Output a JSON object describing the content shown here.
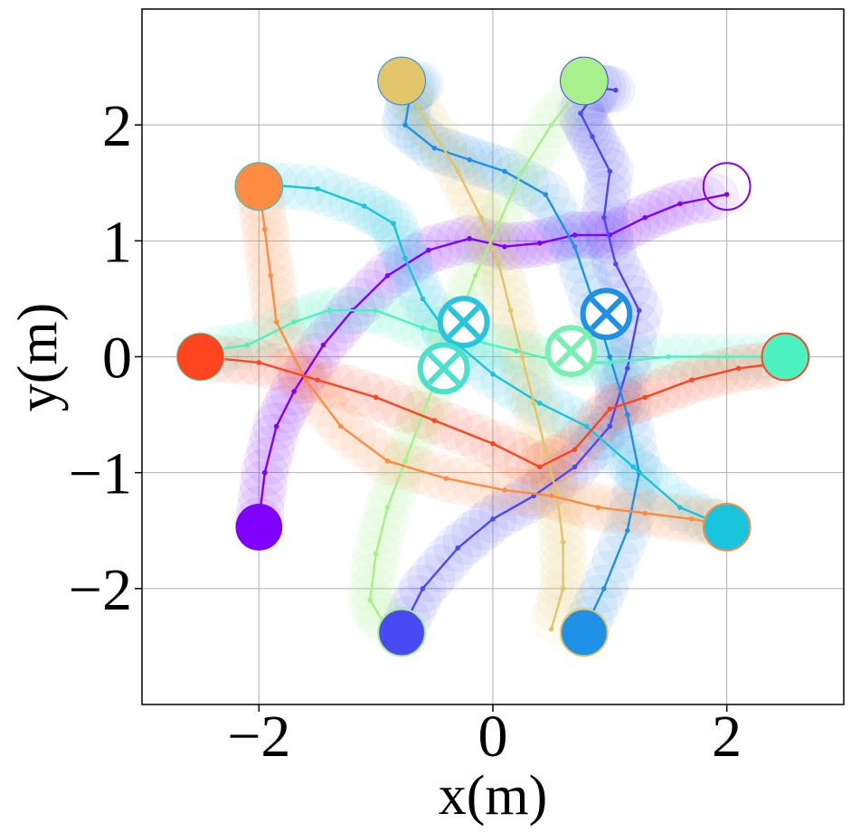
{
  "chart_data": {
    "type": "scatter",
    "title": "",
    "xlabel": "x(m)",
    "ylabel": "y(m)",
    "xlim": [
      -3,
      3
    ],
    "ylim": [
      -3,
      3
    ],
    "grid": true,
    "xticks": [
      {
        "value": -2,
        "label": "−2"
      },
      {
        "value": 0,
        "label": "0"
      },
      {
        "value": 2,
        "label": "2"
      }
    ],
    "yticks": [
      {
        "value": 2,
        "label": "2"
      },
      {
        "value": 1,
        "label": "1"
      },
      {
        "value": 0,
        "label": "0"
      },
      {
        "value": -1,
        "label": "−1"
      },
      {
        "value": -2,
        "label": "−2"
      }
    ],
    "series": [
      {
        "color": "#7f00ff",
        "start": [
          -2.0,
          -1.47
        ],
        "goal": [
          2.0,
          1.47
        ],
        "path": [
          [
            -2.0,
            -1.42
          ],
          [
            -1.95,
            -1.0
          ],
          [
            -1.85,
            -0.6
          ],
          [
            -1.7,
            -0.3
          ],
          [
            -1.45,
            0.1
          ],
          [
            -1.2,
            0.4
          ],
          [
            -0.9,
            0.7
          ],
          [
            -0.55,
            0.92
          ],
          [
            -0.2,
            1.02
          ],
          [
            0.1,
            0.95
          ],
          [
            0.4,
            0.98
          ],
          [
            0.7,
            1.05
          ],
          [
            1.0,
            1.05
          ],
          [
            1.3,
            1.2
          ],
          [
            1.6,
            1.32
          ],
          [
            2.0,
            1.4
          ]
        ]
      },
      {
        "color": "#4a4af5",
        "start": [
          -0.78,
          -2.38
        ],
        "goal": [
          0.78,
          2.38
        ],
        "path": [
          [
            -0.78,
            -2.36
          ],
          [
            -0.6,
            -2.0
          ],
          [
            -0.3,
            -1.65
          ],
          [
            0.0,
            -1.4
          ],
          [
            0.35,
            -1.2
          ],
          [
            0.7,
            -0.95
          ],
          [
            1.0,
            -0.6
          ],
          [
            1.15,
            -0.1
          ],
          [
            1.25,
            0.4
          ],
          [
            1.05,
            0.8
          ],
          [
            0.95,
            1.2
          ],
          [
            1.0,
            1.6
          ],
          [
            0.85,
            1.9
          ],
          [
            0.75,
            2.1
          ],
          [
            0.9,
            2.32
          ],
          [
            1.05,
            2.3
          ]
        ]
      },
      {
        "color": "#1e90e6",
        "start": [
          0.78,
          -2.38
        ],
        "goal": [
          -0.78,
          2.38
        ],
        "path": [
          [
            0.78,
            -2.36
          ],
          [
            0.95,
            -2.0
          ],
          [
            1.15,
            -1.5
          ],
          [
            1.25,
            -1.0
          ],
          [
            1.15,
            -0.5
          ],
          [
            1.0,
            0.0
          ],
          [
            0.85,
            0.5
          ],
          [
            0.7,
            0.95
          ],
          [
            0.45,
            1.4
          ],
          [
            0.1,
            1.6
          ],
          [
            -0.2,
            1.7
          ],
          [
            -0.5,
            1.8
          ],
          [
            -0.75,
            2.0
          ],
          [
            -0.7,
            2.3
          ],
          [
            -0.6,
            2.36
          ]
        ]
      },
      {
        "color": "#19c4dd",
        "start": [
          2.0,
          -1.47
        ],
        "goal": [
          -2.0,
          1.47
        ],
        "path": [
          [
            2.0,
            -1.47
          ],
          [
            1.6,
            -1.3
          ],
          [
            1.2,
            -0.95
          ],
          [
            0.8,
            -0.6
          ],
          [
            0.4,
            -0.4
          ],
          [
            0.0,
            -0.15
          ],
          [
            -0.35,
            0.15
          ],
          [
            -0.6,
            0.5
          ],
          [
            -0.75,
            0.85
          ],
          [
            -0.85,
            1.15
          ],
          [
            -1.1,
            1.3
          ],
          [
            -1.5,
            1.45
          ],
          [
            -2.0,
            1.49
          ]
        ]
      },
      {
        "color": "#4ef2c1",
        "start": [
          2.5,
          0.0
        ],
        "goal": [
          -2.5,
          0.0
        ],
        "path": [
          [
            2.5,
            0.0
          ],
          [
            2.0,
            0.0
          ],
          [
            1.5,
            0.0
          ],
          [
            1.0,
            -0.05
          ],
          [
            0.6,
            -0.05
          ],
          [
            0.2,
            0.05
          ],
          [
            -0.2,
            0.15
          ],
          [
            -0.6,
            0.25
          ],
          [
            -1.0,
            0.4
          ],
          [
            -1.4,
            0.4
          ],
          [
            -1.7,
            0.3
          ],
          [
            -2.1,
            0.1
          ],
          [
            -2.45,
            0.05
          ]
        ]
      },
      {
        "color": "#a8f08b",
        "start": [
          0.78,
          2.38
        ],
        "goal": [
          -0.78,
          -2.38
        ],
        "path": [
          [
            0.78,
            2.38
          ],
          [
            0.5,
            2.0
          ],
          [
            0.25,
            1.6
          ],
          [
            0.05,
            1.15
          ],
          [
            -0.15,
            0.7
          ],
          [
            -0.3,
            0.3
          ],
          [
            -0.45,
            -0.1
          ],
          [
            -0.6,
            -0.5
          ],
          [
            -0.75,
            -0.9
          ],
          [
            -0.9,
            -1.3
          ],
          [
            -1.0,
            -1.7
          ],
          [
            -1.05,
            -2.1
          ],
          [
            -0.9,
            -2.35
          ]
        ]
      },
      {
        "color": "#e2c46a",
        "start": [
          -0.78,
          2.38
        ],
        "goal": [
          0.78,
          -2.38
        ],
        "path": [
          [
            -0.78,
            2.38
          ],
          [
            -0.55,
            2.0
          ],
          [
            -0.3,
            1.6
          ],
          [
            -0.1,
            1.2
          ],
          [
            0.05,
            0.8
          ],
          [
            0.15,
            0.4
          ],
          [
            0.25,
            0.0
          ],
          [
            0.35,
            -0.4
          ],
          [
            0.45,
            -0.8
          ],
          [
            0.55,
            -1.2
          ],
          [
            0.6,
            -1.6
          ],
          [
            0.6,
            -2.0
          ],
          [
            0.5,
            -2.35
          ]
        ]
      },
      {
        "color": "#ff8c42",
        "start": [
          -2.0,
          1.47
        ],
        "goal": [
          2.0,
          -1.47
        ],
        "path": [
          [
            -2.0,
            1.47
          ],
          [
            -1.95,
            1.1
          ],
          [
            -1.9,
            0.7
          ],
          [
            -1.85,
            0.3
          ],
          [
            -1.6,
            -0.2
          ],
          [
            -1.3,
            -0.6
          ],
          [
            -0.9,
            -0.9
          ],
          [
            -0.4,
            -1.05
          ],
          [
            0.1,
            -1.15
          ],
          [
            0.5,
            -1.2
          ],
          [
            0.9,
            -1.3
          ],
          [
            1.3,
            -1.35
          ],
          [
            1.7,
            -1.4
          ],
          [
            2.0,
            -1.45
          ]
        ]
      },
      {
        "color": "#ff4520",
        "start": [
          -2.5,
          0.0
        ],
        "goal": [
          2.5,
          0.0
        ],
        "path": [
          [
            -2.5,
            0.0
          ],
          [
            -2.0,
            -0.05
          ],
          [
            -1.5,
            -0.2
          ],
          [
            -1.0,
            -0.35
          ],
          [
            -0.5,
            -0.55
          ],
          [
            0.0,
            -0.75
          ],
          [
            0.4,
            -0.95
          ],
          [
            0.7,
            -0.8
          ],
          [
            1.0,
            -0.45
          ],
          [
            1.3,
            -0.35
          ],
          [
            1.7,
            -0.2
          ],
          [
            2.1,
            -0.1
          ],
          [
            2.5,
            -0.05
          ]
        ]
      }
    ],
    "crossed_markers": [
      {
        "x": -0.25,
        "y": 0.3,
        "color": "#29c4dd"
      },
      {
        "x": 0.97,
        "y": 0.37,
        "color": "#1e90e6"
      },
      {
        "x": -0.42,
        "y": -0.1,
        "color": "#4ae0cc"
      },
      {
        "x": 0.67,
        "y": 0.05,
        "color": "#7af0b0"
      }
    ]
  }
}
